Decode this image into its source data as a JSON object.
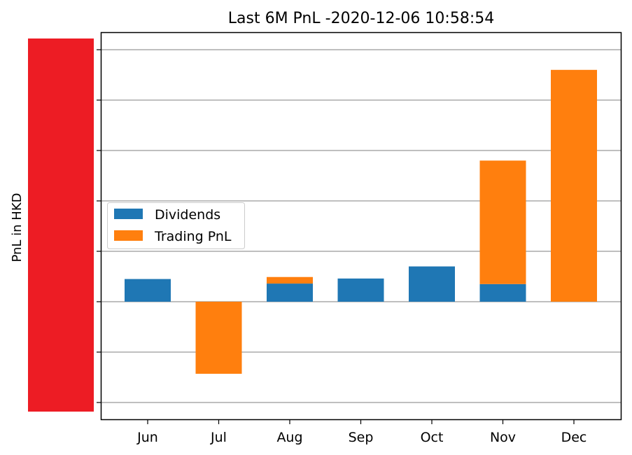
{
  "chart_data": {
    "type": "bar",
    "stacked": true,
    "title": "Last 6M PnL -2020-12-06 10:58:54",
    "xlabel": "",
    "ylabel": "PnL in HKD",
    "categories": [
      "Jun",
      "Jul",
      "Aug",
      "Sep",
      "Oct",
      "Nov",
      "Dec"
    ],
    "series": [
      {
        "name": "Dividends",
        "color": "#1f77b4",
        "values": [
          0.45,
          0,
          0.36,
          0.46,
          0.7,
          0.35,
          0
        ]
      },
      {
        "name": "Trading PnL",
        "color": "#ff7f0e",
        "values": [
          0,
          -1.43,
          0.13,
          0,
          0,
          2.45,
          4.6
        ]
      }
    ],
    "ylim": [
      -2.35,
      5.35
    ],
    "yticks": [
      -2,
      -1,
      0,
      1,
      2,
      3,
      4,
      5
    ],
    "ytick_labels_redacted": true,
    "redaction_color": "#ed1c24",
    "grid": "y",
    "legend_position": "center-left"
  }
}
